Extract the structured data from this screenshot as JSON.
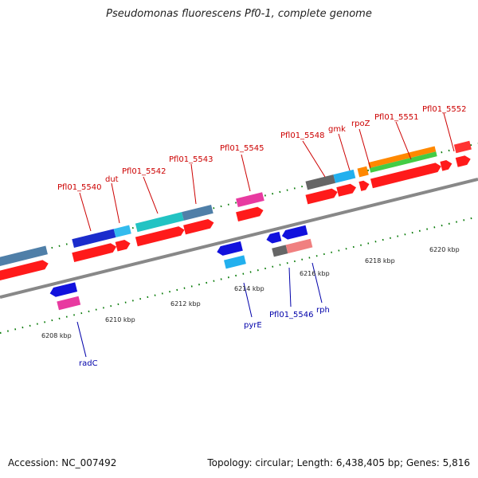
{
  "title": "Pseudomonas fluorescens Pf0-1, complete genome",
  "footer": {
    "accession": "Accession: NC_007492",
    "topology": "Topology: circular; Length: 6,438,405 bp; Genes: 5,816"
  },
  "colors": {
    "backbone": "#888888",
    "cds": "#ff0000",
    "label_top": "#cc0000",
    "label_bottom": "#0000aa",
    "tick": "#007700"
  },
  "scale_labels": [
    "6208 kbp",
    "6210 kbp",
    "6212 kbp",
    "6214 kbp",
    "6216 kbp",
    "6218 kbp",
    "6220 kbp"
  ],
  "top_gene_labels": [
    "Pfl01_5540",
    "dut",
    "Pfl01_5542",
    "Pfl01_5543",
    "Pfl01_5545",
    "Pfl01_5548",
    "gmk",
    "rpoZ",
    "Pfl01_5551",
    "Pfl01_5552"
  ],
  "bottom_gene_labels": [
    "radC",
    "pyrE",
    "Pfl01_5546",
    "rph"
  ]
}
